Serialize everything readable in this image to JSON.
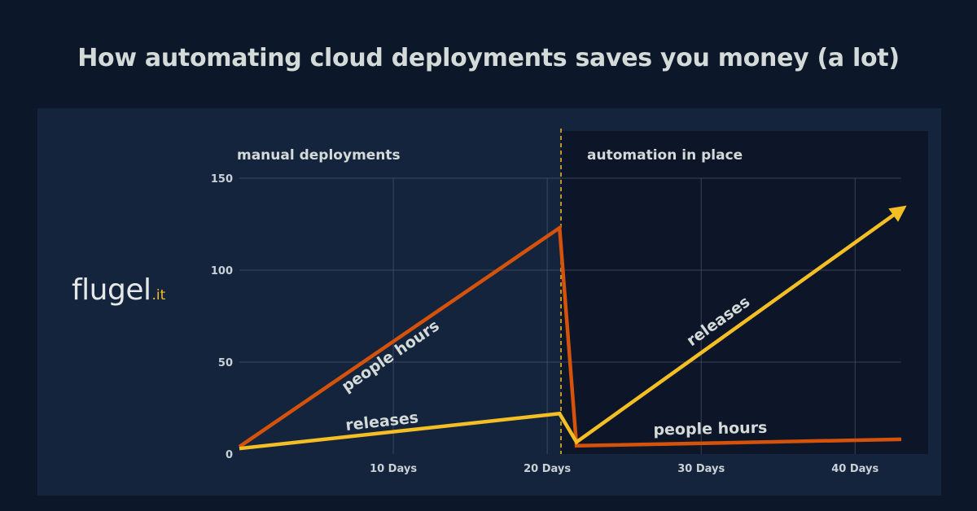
{
  "title": "How automating cloud deployments saves you money (a lot)",
  "logo": {
    "name": "flugel",
    "tld": ".it",
    "name_color": "#e4e8e6",
    "tld_color": "#f4be25"
  },
  "colors": {
    "background": "#0c1729",
    "panel": "#15243d",
    "automation_region": "#0d1628",
    "grid": "#4a5568",
    "people_hours": "#d4520a",
    "releases": "#f4be25",
    "divider": "#f4be25"
  },
  "chart_data": {
    "type": "line",
    "title": "",
    "xlabel": "",
    "ylabel": "",
    "xlim": [
      0,
      43
    ],
    "ylim": [
      0,
      150
    ],
    "x_ticks": [
      {
        "value": 10,
        "label": "10 Days"
      },
      {
        "value": 20,
        "label": "20 Days"
      },
      {
        "value": 30,
        "label": "30 Days"
      },
      {
        "value": 40,
        "label": "40 Days"
      }
    ],
    "y_ticks": [
      {
        "value": 0,
        "label": "0"
      },
      {
        "value": 50,
        "label": "50"
      },
      {
        "value": 100,
        "label": "100"
      },
      {
        "value": 150,
        "label": "150"
      }
    ],
    "grid": true,
    "sections": [
      {
        "name": "manual deployments",
        "x_start": 0,
        "x_end": 21
      },
      {
        "name": "automation in place",
        "x_start": 21,
        "x_end": 43
      }
    ],
    "divider_x": 21,
    "series": [
      {
        "name": "people hours",
        "color": "#d4520a",
        "points": [
          [
            0,
            4
          ],
          [
            20.8,
            123
          ],
          [
            21.9,
            4.5
          ],
          [
            43,
            8
          ]
        ],
        "labels": [
          {
            "text": "people hours",
            "x": 10,
            "y": 51,
            "along_segment": 0
          },
          {
            "text": "people hours",
            "x": 30.6,
            "y": 11,
            "along_segment": -1
          }
        ]
      },
      {
        "name": "releases",
        "color": "#f4be25",
        "points": [
          [
            0,
            3
          ],
          [
            20.8,
            22
          ],
          [
            21.9,
            6.5
          ],
          [
            43,
            133
          ]
        ],
        "arrow_at_end": true,
        "labels": [
          {
            "text": "releases",
            "x": 9.3,
            "y": 15,
            "along_segment": 0
          },
          {
            "text": "releases",
            "x": 31.3,
            "y": 70,
            "along_segment": 2
          }
        ]
      }
    ]
  }
}
